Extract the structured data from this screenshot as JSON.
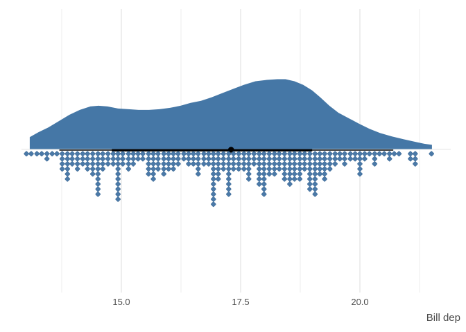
{
  "figure": {
    "xlabel": "Bill dep",
    "x_tick_labels": [
      "15.0",
      "17.5",
      "20.0"
    ]
  },
  "chart_data": {
    "type": "area",
    "variant": "raincloud: half-eye density slab + median/interval + hanging dotplot",
    "title": "",
    "xlabel": "Bill dep",
    "ylabel": "",
    "x_ticks": [
      15.0,
      17.5,
      20.0
    ],
    "x_minor_gridlines": [
      13.75,
      16.25,
      18.75,
      21.25
    ],
    "xlim": [
      12.9,
      21.7
    ],
    "grid": "vertical only, light gray, no axis lines or tick marks",
    "legend": "none",
    "density": {
      "x": [
        13.08,
        13.26,
        13.47,
        13.69,
        13.91,
        14.13,
        14.35,
        14.52,
        14.71,
        14.93,
        15.15,
        15.36,
        15.58,
        15.8,
        16.02,
        16.24,
        16.45,
        16.67,
        16.89,
        17.11,
        17.34,
        17.57,
        17.81,
        18.05,
        18.27,
        18.44,
        18.63,
        18.81,
        19.0,
        19.17,
        19.36,
        19.55,
        19.77,
        19.99,
        20.2,
        20.42,
        20.67,
        20.92,
        21.18,
        21.35,
        21.51
      ],
      "height": [
        0.17,
        0.24,
        0.31,
        0.4,
        0.49,
        0.56,
        0.61,
        0.62,
        0.61,
        0.58,
        0.57,
        0.56,
        0.56,
        0.57,
        0.59,
        0.62,
        0.66,
        0.69,
        0.74,
        0.8,
        0.86,
        0.92,
        0.97,
        0.99,
        1.0,
        1.0,
        0.97,
        0.92,
        0.84,
        0.74,
        0.62,
        0.52,
        0.44,
        0.36,
        0.29,
        0.23,
        0.18,
        0.14,
        0.1,
        0.075,
        0.06
      ]
    },
    "interval": {
      "point_estimate": 17.3,
      "inner_interval": [
        14.8,
        19.0
      ],
      "outer_interval": [
        13.7,
        20.7
      ]
    },
    "dotplot": {
      "marker": "diamond",
      "columns": [
        {
          "x": 13.01,
          "n": 1
        },
        {
          "x": 13.11,
          "n": 1
        },
        {
          "x": 13.23,
          "n": 1
        },
        {
          "x": 13.33,
          "n": 1
        },
        {
          "x": 13.44,
          "n": 2
        },
        {
          "x": 13.55,
          "n": 1
        },
        {
          "x": 13.65,
          "n": 1
        },
        {
          "x": 13.76,
          "n": 4
        },
        {
          "x": 13.87,
          "n": 6
        },
        {
          "x": 13.97,
          "n": 3
        },
        {
          "x": 14.08,
          "n": 4
        },
        {
          "x": 14.19,
          "n": 3
        },
        {
          "x": 14.29,
          "n": 4
        },
        {
          "x": 14.4,
          "n": 5
        },
        {
          "x": 14.51,
          "n": 9
        },
        {
          "x": 14.61,
          "n": 4
        },
        {
          "x": 14.72,
          "n": 3
        },
        {
          "x": 14.83,
          "n": 3
        },
        {
          "x": 14.93,
          "n": 10
        },
        {
          "x": 15.03,
          "n": 3
        },
        {
          "x": 15.15,
          "n": 4
        },
        {
          "x": 15.25,
          "n": 3
        },
        {
          "x": 15.35,
          "n": 2
        },
        {
          "x": 15.45,
          "n": 2
        },
        {
          "x": 15.57,
          "n": 5
        },
        {
          "x": 15.67,
          "n": 6
        },
        {
          "x": 15.77,
          "n": 4
        },
        {
          "x": 15.89,
          "n": 5
        },
        {
          "x": 15.99,
          "n": 4
        },
        {
          "x": 16.09,
          "n": 4
        },
        {
          "x": 16.19,
          "n": 3
        },
        {
          "x": 16.31,
          "n": 2
        },
        {
          "x": 16.41,
          "n": 3
        },
        {
          "x": 16.51,
          "n": 3
        },
        {
          "x": 16.61,
          "n": 5
        },
        {
          "x": 16.73,
          "n": 3
        },
        {
          "x": 16.83,
          "n": 3
        },
        {
          "x": 16.93,
          "n": 11
        },
        {
          "x": 17.03,
          "n": 6
        },
        {
          "x": 17.14,
          "n": 4
        },
        {
          "x": 17.25,
          "n": 9
        },
        {
          "x": 17.35,
          "n": 4
        },
        {
          "x": 17.46,
          "n": 4
        },
        {
          "x": 17.57,
          "n": 4
        },
        {
          "x": 17.67,
          "n": 6
        },
        {
          "x": 17.78,
          "n": 3
        },
        {
          "x": 17.89,
          "n": 7
        },
        {
          "x": 17.99,
          "n": 9
        },
        {
          "x": 18.1,
          "n": 5
        },
        {
          "x": 18.21,
          "n": 5
        },
        {
          "x": 18.31,
          "n": 4
        },
        {
          "x": 18.42,
          "n": 6
        },
        {
          "x": 18.53,
          "n": 7
        },
        {
          "x": 18.63,
          "n": 6
        },
        {
          "x": 18.74,
          "n": 6
        },
        {
          "x": 18.84,
          "n": 4
        },
        {
          "x": 18.95,
          "n": 8
        },
        {
          "x": 19.06,
          "n": 9
        },
        {
          "x": 19.16,
          "n": 5
        },
        {
          "x": 19.26,
          "n": 6
        },
        {
          "x": 19.37,
          "n": 4
        },
        {
          "x": 19.48,
          "n": 3
        },
        {
          "x": 19.58,
          "n": 2
        },
        {
          "x": 19.68,
          "n": 3
        },
        {
          "x": 19.8,
          "n": 2
        },
        {
          "x": 19.9,
          "n": 2
        },
        {
          "x": 20.0,
          "n": 5
        },
        {
          "x": 20.1,
          "n": 2
        },
        {
          "x": 20.2,
          "n": 1
        },
        {
          "x": 20.31,
          "n": 3
        },
        {
          "x": 20.41,
          "n": 1
        },
        {
          "x": 20.51,
          "n": 1
        },
        {
          "x": 20.62,
          "n": 2
        },
        {
          "x": 20.72,
          "n": 1
        },
        {
          "x": 20.82,
          "n": 1
        },
        {
          "x": 21.06,
          "n": 2
        },
        {
          "x": 21.16,
          "n": 3
        },
        {
          "x": 21.5,
          "n": 1
        }
      ]
    },
    "colors": {
      "slab_fill": "#4577a6",
      "dot_fill": "#4b79a7",
      "dot_stroke": "#3d6a96",
      "interval": "#000000",
      "grid_major": "#e2e2e2",
      "grid_minor": "#ededed",
      "baseline_grid": "#ebebeb",
      "axis_text": "#4d4d4d",
      "axis_title": "#4a4a4a",
      "background": "#ffffff"
    }
  }
}
